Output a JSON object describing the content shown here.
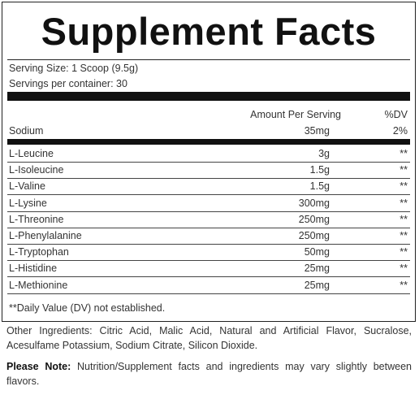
{
  "header": {
    "title": "Supplement Facts"
  },
  "serving": {
    "size": "Serving Size: 1 Scoop (9.5g)",
    "per_container": "Servings per container: 30"
  },
  "table": {
    "columns": [
      "Amount Per Serving",
      "%DV"
    ],
    "top_rows": [
      [
        "Sodium",
        "35mg",
        "2%"
      ]
    ],
    "rows": [
      [
        "L-Leucine",
        "3g",
        "**"
      ],
      [
        "L-Isoleucine",
        "1.5g",
        "**"
      ],
      [
        "L-Valine",
        "1.5g",
        "**"
      ],
      [
        "L-Lysine",
        "300mg",
        "**"
      ],
      [
        "L-Threonine",
        "250mg",
        "**"
      ],
      [
        "L-Phenylalanine",
        "250mg",
        "**"
      ],
      [
        "L-Tryptophan",
        "50mg",
        "**"
      ],
      [
        "L-Histidine",
        "25mg",
        "**"
      ],
      [
        "L-Methionine",
        "25mg",
        "**"
      ]
    ]
  },
  "footnote": "**Daily Value (DV) not established.",
  "other_ingredients": "Other Ingredients: Citric Acid, Malic Acid, Natural and Artificial Flavor, Sucralose, Acesulfame Potassium, Sodium Citrate, Silicon Dioxide.",
  "note": {
    "label": "Please Note:",
    "text": "Nutrition/Supplement facts and ingredients may vary slightly between flavors."
  }
}
